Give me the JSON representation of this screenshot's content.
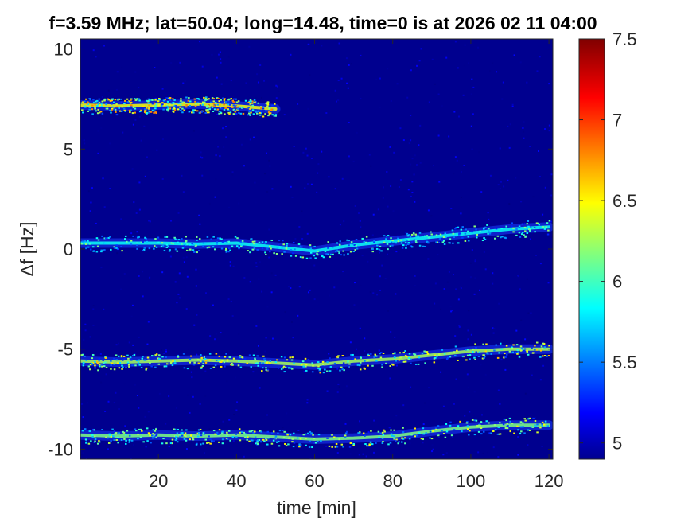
{
  "chart_data": {
    "type": "heatmap",
    "title": "f=3.59 MHz;  lat=50.04; long=14.48, time=0 is at 2026 02 11 04:00",
    "xlabel": "time [min]",
    "ylabel": "Δf [Hz]",
    "xlim": [
      0,
      121
    ],
    "ylim": [
      -10.5,
      10.5
    ],
    "xticks": [
      20,
      40,
      60,
      80,
      100,
      120
    ],
    "xtick_labels": [
      "20",
      "40",
      "60",
      "80",
      "100",
      "120"
    ],
    "yticks": [
      -10,
      -5,
      0,
      5,
      10
    ],
    "ytick_labels": [
      "-10",
      "-5",
      "0",
      "5",
      "10"
    ],
    "colorbar": {
      "colormap": "jet",
      "clim": [
        4.9,
        7.5
      ],
      "ticks": [
        5,
        5.5,
        6,
        6.5,
        7,
        7.5
      ],
      "tick_labels": [
        "5",
        "5.5",
        "6",
        "6.5",
        "7",
        "7.5"
      ]
    },
    "background_color": "#00008f",
    "traces": [
      {
        "x": [
          0,
          10,
          20,
          30,
          40,
          50
        ],
        "y": [
          7.2,
          7.15,
          7.2,
          7.25,
          7.15,
          7.0
        ],
        "peak_value": 6.9
      },
      {
        "x": [
          0,
          10,
          20,
          30,
          40,
          50,
          60,
          70,
          80,
          90,
          100,
          110,
          120
        ],
        "y": [
          0.3,
          0.3,
          0.3,
          0.25,
          0.3,
          0.1,
          -0.1,
          0.2,
          0.4,
          0.6,
          0.8,
          1.0,
          1.1
        ],
        "peak_value": 6.3
      },
      {
        "x": [
          0,
          10,
          20,
          30,
          40,
          50,
          60,
          70,
          80,
          90,
          100,
          110,
          120
        ],
        "y": [
          -5.6,
          -5.65,
          -5.6,
          -5.55,
          -5.6,
          -5.7,
          -5.8,
          -5.6,
          -5.5,
          -5.3,
          -5.1,
          -5.0,
          -5.0
        ],
        "peak_value": 6.7
      },
      {
        "x": [
          0,
          10,
          20,
          30,
          40,
          50,
          60,
          70,
          80,
          90,
          100,
          110,
          120
        ],
        "y": [
          -9.3,
          -9.35,
          -9.3,
          -9.35,
          -9.3,
          -9.4,
          -9.5,
          -9.45,
          -9.35,
          -9.1,
          -8.9,
          -8.8,
          -8.8
        ],
        "peak_value": 6.6
      }
    ]
  }
}
